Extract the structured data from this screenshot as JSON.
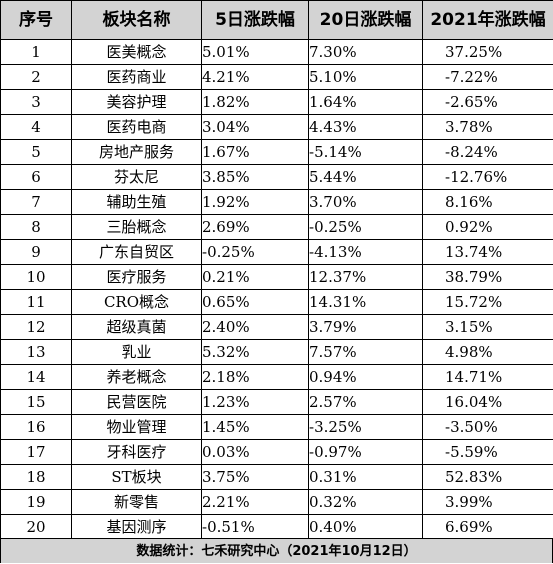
{
  "table": {
    "headers": [
      "序号",
      "板块名称",
      "5日涨跌幅",
      "20日涨跌幅",
      "2021年涨跌幅"
    ],
    "rows": [
      [
        "1",
        "医美概念",
        "5.01%",
        "7.30%",
        "37.25%"
      ],
      [
        "2",
        "医药商业",
        "4.21%",
        "5.10%",
        "-7.22%"
      ],
      [
        "3",
        "美容护理",
        "1.82%",
        "1.64%",
        "-2.65%"
      ],
      [
        "4",
        "医药电商",
        "3.04%",
        "4.43%",
        "3.78%"
      ],
      [
        "5",
        "房地产服务",
        "1.67%",
        "-5.14%",
        "-8.24%"
      ],
      [
        "6",
        "芬太尼",
        "3.85%",
        "5.44%",
        "-12.76%"
      ],
      [
        "7",
        "辅助生殖",
        "1.92%",
        "3.70%",
        "8.16%"
      ],
      [
        "8",
        "三胎概念",
        "2.69%",
        "-0.25%",
        "0.92%"
      ],
      [
        "9",
        "广东自贸区",
        "-0.25%",
        "-4.13%",
        "13.74%"
      ],
      [
        "10",
        "医疗服务",
        "0.21%",
        "12.37%",
        "38.79%"
      ],
      [
        "11",
        "CRO概念",
        "0.65%",
        "14.31%",
        "15.72%"
      ],
      [
        "12",
        "超级真菌",
        "2.40%",
        "3.79%",
        "3.15%"
      ],
      [
        "13",
        "乳业",
        "5.32%",
        "7.57%",
        "4.98%"
      ],
      [
        "14",
        "养老概念",
        "2.18%",
        "0.94%",
        "14.71%"
      ],
      [
        "15",
        "民营医院",
        "1.23%",
        "2.57%",
        "16.04%"
      ],
      [
        "16",
        "物业管理",
        "1.45%",
        "-3.25%",
        "-3.50%"
      ],
      [
        "17",
        "牙科医疗",
        "0.03%",
        "-0.97%",
        "-5.59%"
      ],
      [
        "18",
        "ST板块",
        "3.75%",
        "0.31%",
        "52.83%"
      ],
      [
        "19",
        "新零售",
        "2.21%",
        "0.32%",
        "3.99%"
      ],
      [
        "20",
        "基因测序",
        "-0.51%",
        "0.40%",
        "6.69%"
      ]
    ]
  },
  "footer": {
    "text": "数据统计：七禾研究中心（2021年10月12日）"
  },
  "colors": {
    "header_bg": "#d3d3d3",
    "footer_bg": "#d3d3d3",
    "border": "#000000"
  }
}
